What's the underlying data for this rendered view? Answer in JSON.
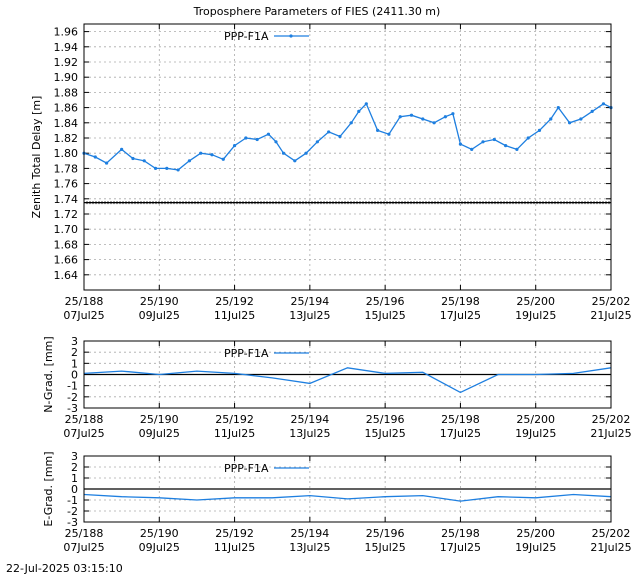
{
  "footer_timestamp": "22-Jul-2025 03:15:10",
  "x_ticks": [
    {
      "day": 188,
      "label1": "25/188",
      "label2": "07Jul25"
    },
    {
      "day": 190,
      "label1": "25/190",
      "label2": "09Jul25"
    },
    {
      "day": 192,
      "label1": "25/192",
      "label2": "11Jul25"
    },
    {
      "day": 194,
      "label1": "25/194",
      "label2": "13Jul25"
    },
    {
      "day": 196,
      "label1": "25/196",
      "label2": "15Jul25"
    },
    {
      "day": 198,
      "label1": "25/198",
      "label2": "17Jul25"
    },
    {
      "day": 200,
      "label1": "25/200",
      "label2": "19Jul25"
    },
    {
      "day": 202,
      "label1": "25/202",
      "label2": "21Jul25"
    }
  ],
  "colors": {
    "series": "#1e7fe0",
    "reference": "#000000",
    "grid": "#aaaaaa"
  },
  "chart_data": [
    {
      "type": "line",
      "title": "Troposphere Parameters of FIES (2411.30 m)",
      "ylabel": "Zenith Total Delay [m]",
      "xlim": [
        188,
        202
      ],
      "ylim": [
        1.62,
        1.97
      ],
      "yticks": [
        "1.64",
        "1.66",
        "1.68",
        "1.70",
        "1.72",
        "1.74",
        "1.76",
        "1.78",
        "1.80",
        "1.82",
        "1.84",
        "1.86",
        "1.88",
        "1.90",
        "1.92",
        "1.94",
        "1.96"
      ],
      "grid": true,
      "legend": "top-left",
      "reference_line": 1.735,
      "series": [
        {
          "name": "PPP-F1A",
          "x": [
            188.0,
            188.3,
            188.6,
            189.0,
            189.3,
            189.6,
            189.9,
            190.2,
            190.5,
            190.8,
            191.1,
            191.4,
            191.7,
            192.0,
            192.3,
            192.6,
            192.9,
            193.1,
            193.3,
            193.6,
            193.9,
            194.2,
            194.5,
            194.8,
            195.1,
            195.3,
            195.5,
            195.8,
            196.1,
            196.4,
            196.7,
            197.0,
            197.3,
            197.6,
            197.8,
            198.0,
            198.3,
            198.6,
            198.9,
            199.2,
            199.5,
            199.8,
            200.1,
            200.4,
            200.6,
            200.9,
            201.2,
            201.5,
            201.8,
            202.0
          ],
          "y": [
            1.8,
            1.795,
            1.787,
            1.805,
            1.793,
            1.79,
            1.78,
            1.78,
            1.778,
            1.79,
            1.8,
            1.798,
            1.792,
            1.81,
            1.82,
            1.818,
            1.825,
            1.815,
            1.8,
            1.79,
            1.8,
            1.815,
            1.828,
            1.822,
            1.84,
            1.855,
            1.865,
            1.83,
            1.825,
            1.848,
            1.85,
            1.845,
            1.84,
            1.848,
            1.852,
            1.812,
            1.805,
            1.815,
            1.818,
            1.81,
            1.805,
            1.82,
            1.83,
            1.845,
            1.86,
            1.84,
            1.845,
            1.855,
            1.865,
            1.86
          ]
        }
      ]
    },
    {
      "type": "line",
      "ylabel": "N-Grad. [mm]",
      "xlim": [
        188,
        202
      ],
      "ylim": [
        -3,
        3
      ],
      "yticks": [
        "-3",
        "-2",
        "-1",
        "0",
        "1",
        "2",
        "3"
      ],
      "grid": true,
      "legend": "top-left",
      "reference_line": 0,
      "series": [
        {
          "name": "PPP-F1A",
          "x": [
            188,
            189,
            190,
            191,
            192,
            193,
            194,
            195,
            196,
            197,
            198,
            199,
            200,
            201,
            202
          ],
          "y": [
            0.1,
            0.3,
            0.0,
            0.3,
            0.1,
            -0.3,
            -0.8,
            0.6,
            0.1,
            0.2,
            -1.6,
            0.0,
            0.0,
            0.1,
            0.6
          ]
        }
      ]
    },
    {
      "type": "line",
      "ylabel": "E-Grad. [mm]",
      "xlim": [
        188,
        202
      ],
      "ylim": [
        -3,
        3
      ],
      "yticks": [
        "-3",
        "-2",
        "-1",
        "0",
        "1",
        "2",
        "3"
      ],
      "grid": true,
      "legend": "top-left",
      "reference_line": 0,
      "series": [
        {
          "name": "PPP-F1A",
          "x": [
            188,
            189,
            190,
            191,
            192,
            193,
            194,
            195,
            196,
            197,
            198,
            199,
            200,
            201,
            202
          ],
          "y": [
            -0.5,
            -0.7,
            -0.8,
            -1.0,
            -0.8,
            -0.8,
            -0.6,
            -0.9,
            -0.7,
            -0.6,
            -1.1,
            -0.7,
            -0.8,
            -0.5,
            -0.7
          ]
        }
      ]
    }
  ]
}
